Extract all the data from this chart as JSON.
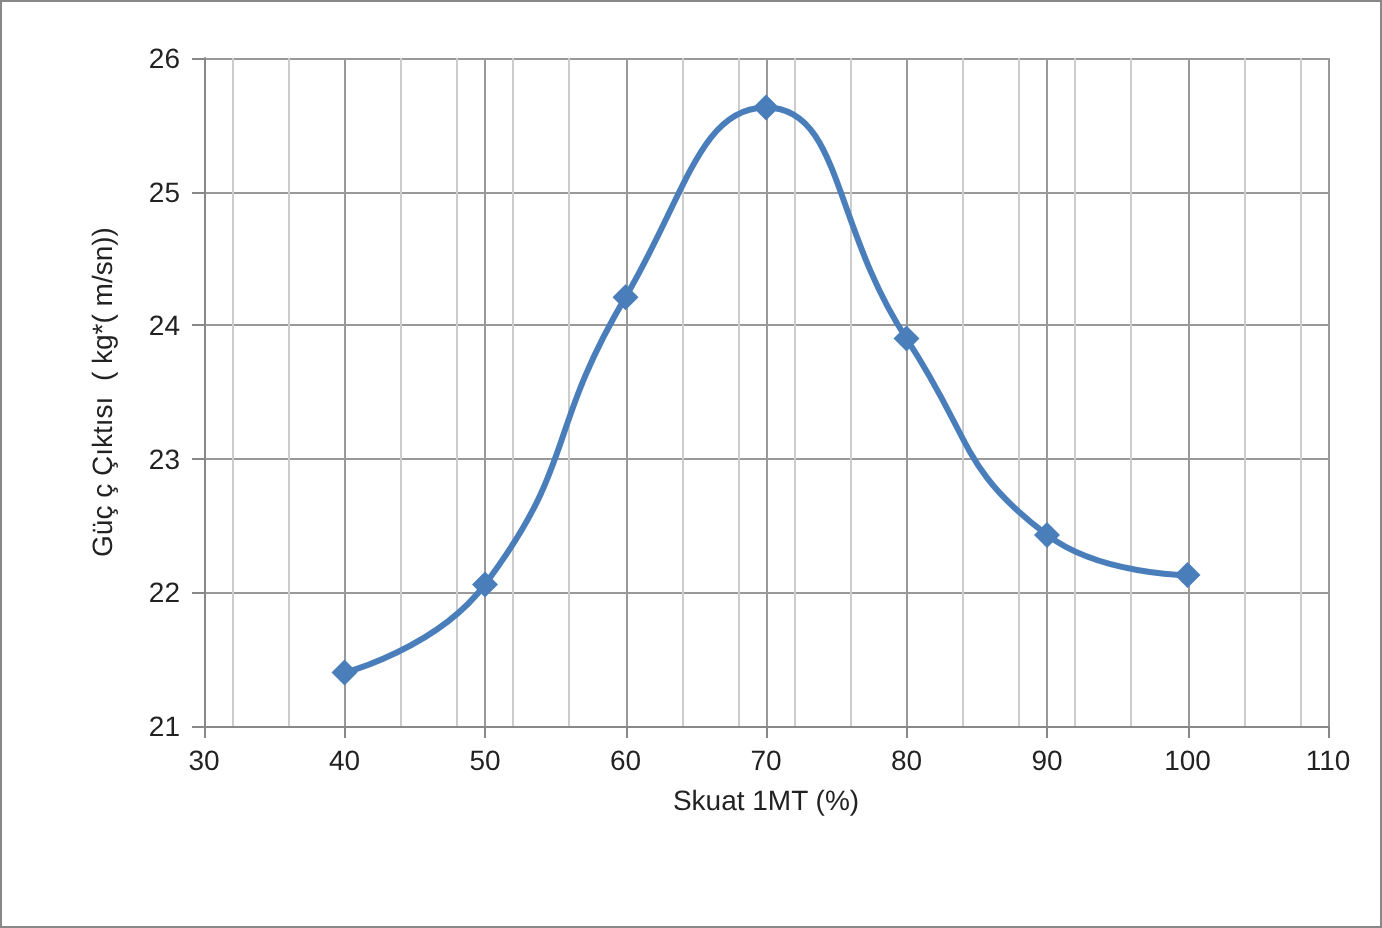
{
  "chart_data": {
    "type": "line",
    "xlabel": "Skuat 1MT (%)",
    "ylabel": "Güç ç Çıktısı  ( kg*( m/sn))",
    "x": [
      40,
      50,
      60,
      70,
      80,
      90,
      100
    ],
    "series": [
      {
        "color": "#4a7ebb",
        "values": [
          21.4,
          22.06,
          24.21,
          25.63,
          23.9,
          22.43,
          22.13
        ]
      }
    ],
    "xlim": [
      30,
      110
    ],
    "xticks": [
      30,
      40,
      50,
      60,
      70,
      80,
      90,
      100,
      110
    ],
    "ylim": [
      21,
      26
    ],
    "yticks": [
      21,
      22,
      23,
      24,
      25,
      26
    ],
    "grid": true,
    "marker": "diamond",
    "line_style": "solid"
  }
}
